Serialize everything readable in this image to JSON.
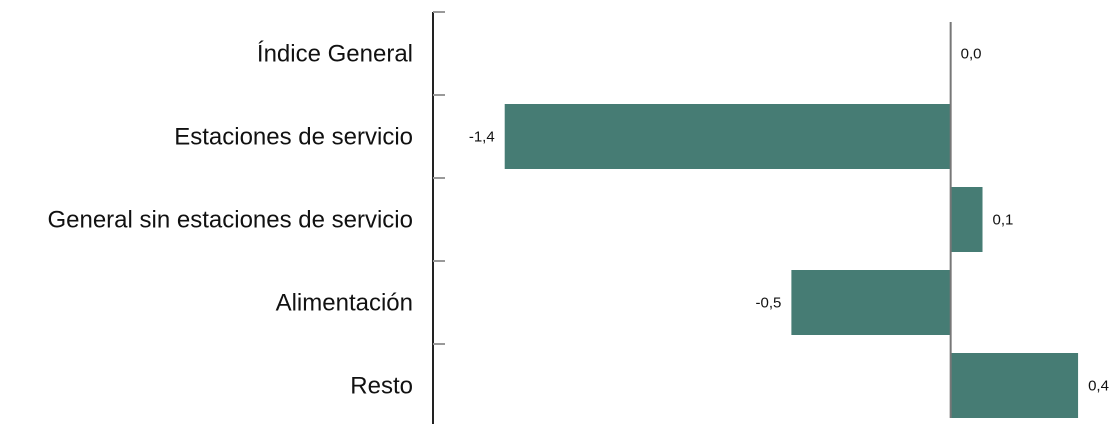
{
  "chart_data": {
    "type": "bar",
    "orientation": "horizontal",
    "categories": [
      "Índice General",
      "Estaciones de servicio",
      "General sin estaciones de servicio",
      "Alimentación",
      "Resto"
    ],
    "values": [
      0.0,
      -1.4,
      0.1,
      -0.5,
      0.4
    ],
    "value_labels": [
      "0,0",
      "-1,4",
      "0,1",
      "-0,5",
      "0,4"
    ],
    "title": "",
    "xlabel": "",
    "ylabel": "",
    "xlim": [
      -1.6,
      0.45
    ],
    "grid": false,
    "bar_color": "#467c74"
  }
}
